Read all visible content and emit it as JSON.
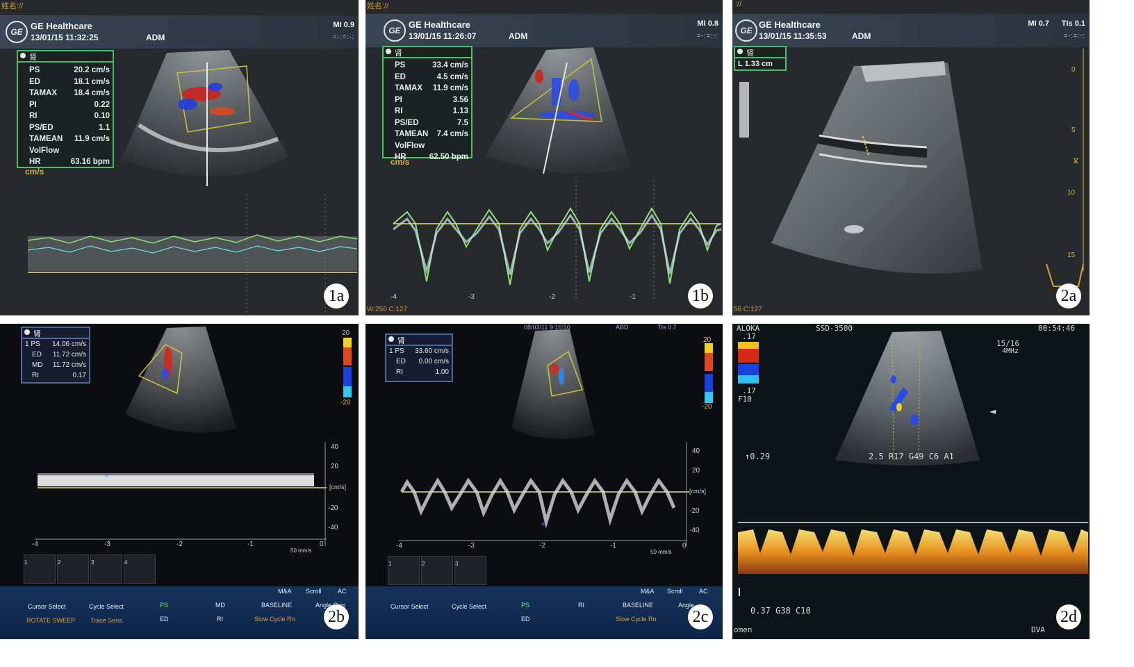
{
  "panels": {
    "p1a": {
      "top_label": "姓名://",
      "brand": "GE Healthcare",
      "datetime": "13/01/15 11:32:25",
      "user": "ADM",
      "mi": "MI 0.9",
      "box_title": "肾",
      "measurements": [
        {
          "label": "PS",
          "value": "20.2 cm/s"
        },
        {
          "label": "ED",
          "value": "18.1 cm/s"
        },
        {
          "label": "TAMAX",
          "value": "18.4 cm/s"
        },
        {
          "label": "PI",
          "value": "0.22"
        },
        {
          "label": "RI",
          "value": "0.10"
        },
        {
          "label": "PS/ED",
          "value": "1.1"
        },
        {
          "label": "TAMEAN",
          "value": "11.9 cm/s"
        },
        {
          "label": "VolFlow",
          "value": ""
        },
        {
          "label": "HR",
          "value": "63.16 bpm"
        }
      ],
      "unit": "cm/s",
      "panel_label": "1a"
    },
    "p1b": {
      "top_label": "姓名://",
      "brand": "GE Healthcare",
      "datetime": "13/01/15 11:26:07",
      "user": "ADM",
      "mi": "MI 0.8",
      "box_title": "肾",
      "measurements": [
        {
          "label": "PS",
          "value": "33.4 cm/s"
        },
        {
          "label": "ED",
          "value": "4.5 cm/s"
        },
        {
          "label": "TAMAX",
          "value": "11.9 cm/s"
        },
        {
          "label": "PI",
          "value": "3.56"
        },
        {
          "label": "RI",
          "value": "1.13"
        },
        {
          "label": "PS/ED",
          "value": "7.5"
        },
        {
          "label": "TAMEAN",
          "value": "7.4 cm/s"
        },
        {
          "label": "VolFlow",
          "value": ""
        },
        {
          "label": "HR",
          "value": "62.50 bpm"
        }
      ],
      "unit": "cm/s",
      "time_ticks": [
        "-4",
        "-3",
        "-2",
        "-1"
      ],
      "footer": "W:256 C:127",
      "panel_label": "1b"
    },
    "p2a": {
      "top_label": "://",
      "brand": "GE Healthcare",
      "datetime": "13/01/15 11:35:53",
      "user": "ADM",
      "mi": "MI 0.7",
      "tis": "TIs 0.1",
      "box_title": "肾",
      "length": "L  1.33 cm",
      "depth_ticks": [
        "0",
        "5",
        "10",
        "15"
      ],
      "footer": "56 C:127",
      "panel_label": "2a"
    },
    "p2b": {
      "box_title": "肾",
      "measurements": [
        {
          "label": "1 PS",
          "value": "14.06 cm/s"
        },
        {
          "label": "ED",
          "value": "11.72 cm/s"
        },
        {
          "label": "MD",
          "value": "11.72 cm/s"
        },
        {
          "label": "RI",
          "value": "0.17"
        }
      ],
      "scale_top": "20",
      "scale_bottom": "-20",
      "vel_ticks": [
        "40",
        "20",
        "-20",
        "-40"
      ],
      "vel_unit": "[cm/s]",
      "time_ticks": [
        "-4",
        "-3",
        "-2",
        "-1",
        "0"
      ],
      "sweep": "50 mm/s",
      "thumbs": [
        "1",
        "2",
        "3",
        "4"
      ],
      "tabs": [
        "M&A",
        "Scroll",
        "AC"
      ],
      "softkeys": [
        {
          "top": "Cursor Select",
          "bottom": "ROTATE SWEEP"
        },
        {
          "top": "Cycle Select",
          "bottom": "Trace Sens."
        },
        {
          "top": "PS",
          "bottom": "ED"
        },
        {
          "top": "MD",
          "bottom": "RI"
        },
        {
          "top": "BASELINE",
          "bottom": "Slow Cycle Rn"
        },
        {
          "top": "Angle Corr.",
          "bottom": ""
        }
      ],
      "panel_label": "2b"
    },
    "p2c": {
      "header_date": "08/03/11 9:16:50",
      "header_abd": "ABD",
      "header_tis": "TIs 0.7",
      "box_title": "肾",
      "measurements": [
        {
          "label": "1 PS",
          "value": "33.60 cm/s"
        },
        {
          "label": "ED",
          "value": "0.00 cm/s"
        },
        {
          "label": "RI",
          "value": "1.00"
        }
      ],
      "scale_top": "20",
      "scale_bottom": "-20",
      "vel_ticks": [
        "40",
        "20",
        "-20",
        "-40"
      ],
      "vel_unit": "[cm/s]",
      "time_ticks": [
        "-4",
        "-3",
        "-2",
        "-1",
        "0"
      ],
      "sweep": "50 mm/s",
      "thumbs": [
        "1",
        "2",
        "3"
      ],
      "tabs": [
        "M&A",
        "Scroll",
        "AC"
      ],
      "softkeys": [
        {
          "top": "Cursor Select",
          "bottom": ""
        },
        {
          "top": "Cycle Select",
          "bottom": ""
        },
        {
          "top": "PS",
          "bottom": "ED"
        },
        {
          "top": "RI",
          "bottom": ""
        },
        {
          "top": "BASELINE",
          "bottom": "Slow Cycle Rn"
        },
        {
          "top": "Angle",
          "bottom": ""
        }
      ],
      "panel_label": "2c"
    },
    "p2d": {
      "header_left": "ALOKA",
      "header_model": "SSD-3500",
      "header_time": "00:54:46",
      "scale_top": ".17",
      "scale_bottom": ".17",
      "f_label": "F10",
      "frame": "15/16",
      "freq": "4MHz",
      "baseline": "↑0.29",
      "params": "2.5 R17 G49 C6 A1",
      "bottom_params": "0.37 G38 C10",
      "footer_left": "omen",
      "footer_right": "DVA",
      "panel_label": "2d"
    }
  },
  "colors": {
    "panel_bg": "#262a2d",
    "box_border": "#49c06a",
    "baseline": "#e6e08a",
    "trace_green": "#8ee07a",
    "trace_cyan": "#6fe0e8",
    "header_blue": "#2f3947",
    "aloka_orange": "#f0a020",
    "orange_text": "#d49a2a"
  }
}
